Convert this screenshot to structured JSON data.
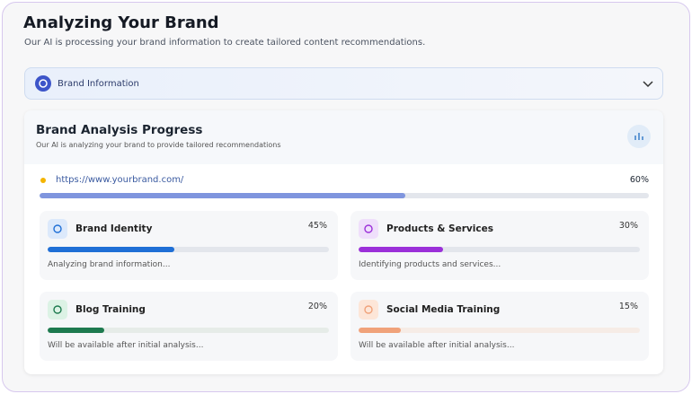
{
  "header": {
    "title": "Analyzing Your Brand",
    "subtitle": "Our AI is processing your brand information to create tailored content recommendations."
  },
  "brand_info": {
    "label": "Brand Information"
  },
  "progress_card": {
    "title": "Brand Analysis Progress",
    "subtitle": "Our AI is analyzing your brand to provide tailored recommendations",
    "url": "https://www.yourbrand.com/",
    "progress": {
      "value": 60,
      "label": "60%"
    },
    "tasks": [
      {
        "name": "Brand Identity",
        "progress": {
          "value": 45,
          "label": "45%"
        },
        "status": "Analyzing brand information...",
        "color": "#1f6fd6",
        "track": "#e3e6ec",
        "tint": "#dce9fb"
      },
      {
        "name": "Products & Services",
        "progress": {
          "value": 30,
          "label": "30%"
        },
        "status": "Identifying products and services...",
        "color": "#9b30d9",
        "track": "#e3e6ec",
        "tint": "#efdffb"
      },
      {
        "name": "Blog Training",
        "progress": {
          "value": 20,
          "label": "20%"
        },
        "status": "Will be available after initial analysis...",
        "color": "#1e7a4f",
        "track": "#e6ece8",
        "tint": "#dcf2e5"
      },
      {
        "name": "Social Media Training",
        "progress": {
          "value": 15,
          "label": "15%"
        },
        "status": "Will be available after initial analysis...",
        "color": "#f0a27a",
        "track": "#f6ece6",
        "tint": "#fde6d8"
      }
    ]
  }
}
